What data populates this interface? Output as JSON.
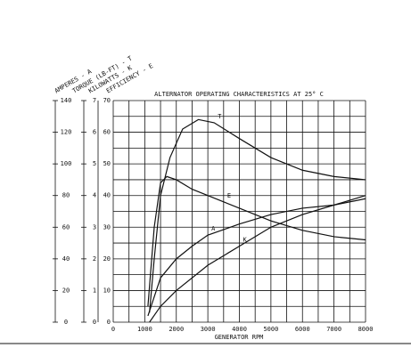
{
  "chart_data": {
    "type": "line",
    "title": "ALTERNATOR OPERATING CHARACTERISTICS AT 25° C",
    "x_label": "GENERATOR RPM",
    "xlim": [
      0,
      8000
    ],
    "xticks": [
      0,
      1000,
      2000,
      3000,
      4000,
      5000,
      6000,
      7000,
      8000
    ],
    "ylim": [
      0,
      70
    ],
    "yticks": [
      0,
      10,
      20,
      30,
      40,
      50,
      60,
      70
    ],
    "alt_axes": [
      {
        "label": "AMPERES - A",
        "lim": [
          0,
          140
        ],
        "ticks": [
          0,
          20,
          40,
          60,
          80,
          100,
          120,
          140
        ]
      },
      {
        "label": "TORQUE (LB-FT) - T",
        "lim": [
          0,
          7
        ],
        "ticks": [
          0,
          1,
          2,
          3,
          4,
          5,
          6,
          7
        ]
      }
    ],
    "y_labels": [
      "KILOWATTS - K",
      "EFFICIENCY - E"
    ],
    "grid": true,
    "color": "#111111",
    "series": [
      {
        "name": "T",
        "x": [
          1150,
          1300,
          1500,
          1800,
          2200,
          2700,
          3200,
          4000,
          5000,
          6000,
          7000,
          8000
        ],
        "values": [
          3,
          20,
          40,
          52,
          61,
          64,
          63,
          58,
          52,
          48,
          46,
          45
        ]
      },
      {
        "name": "E",
        "x": [
          1100,
          1300,
          1500,
          1700,
          2000,
          2500,
          3000,
          3500,
          4000,
          5000,
          6000,
          7000,
          8000
        ],
        "values": [
          5,
          30,
          44,
          46,
          45,
          42,
          40,
          38,
          36,
          32,
          29,
          27,
          26
        ]
      },
      {
        "name": "A",
        "x": [
          1100,
          1500,
          2000,
          2500,
          3000,
          4000,
          5000,
          6000,
          7000,
          8000
        ],
        "values": [
          2,
          14,
          20,
          24,
          27.5,
          31,
          34,
          36,
          37,
          39
        ]
      },
      {
        "name": "K",
        "x": [
          1150,
          1500,
          2000,
          3000,
          4000,
          5000,
          6000,
          7000,
          8000
        ],
        "values": [
          0,
          5,
          10,
          18,
          24,
          30,
          34,
          37,
          40
        ]
      }
    ]
  }
}
